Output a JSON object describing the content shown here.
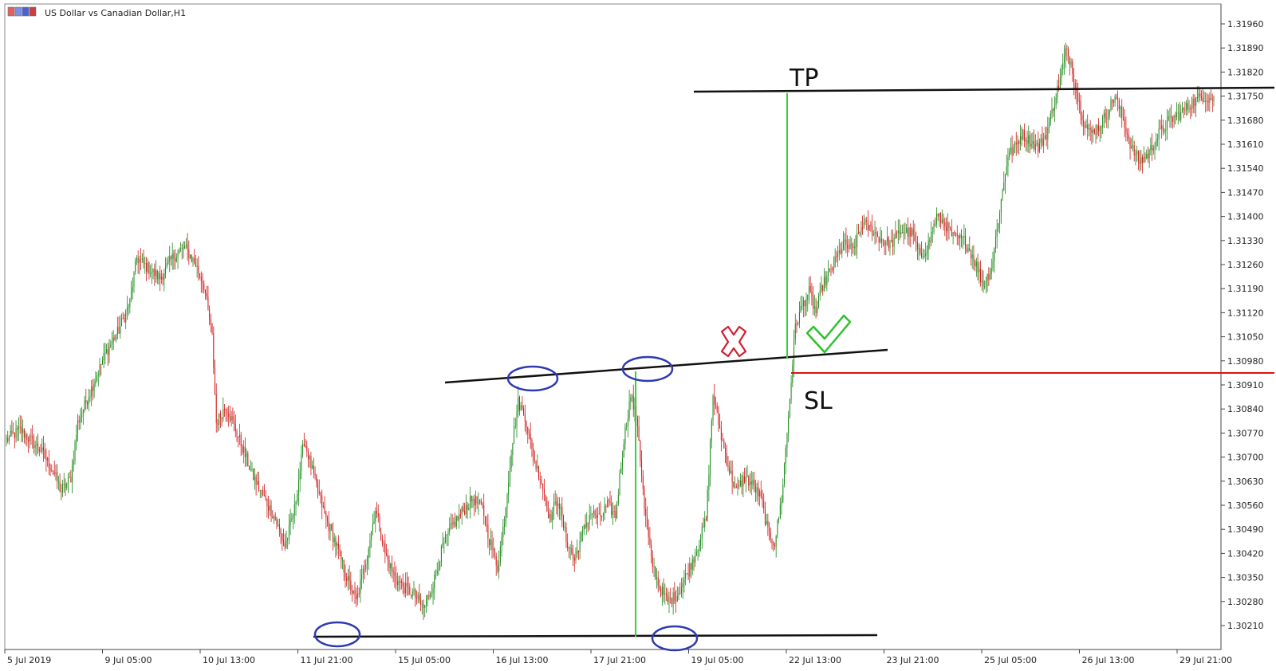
{
  "window": {
    "title": "US Dollar vs Canadian Dollar,H1"
  },
  "chart_data": {
    "type": "candlestick",
    "title": "US Dollar vs Canadian Dollar,H1",
    "symbol": "USDCAD",
    "timeframe": "H1",
    "ylim": [
      1.3017,
      1.3202
    ],
    "y_ticks": [
      "1.31960",
      "1.31890",
      "1.31820",
      "1.31750",
      "1.31680",
      "1.31610",
      "1.31540",
      "1.31470",
      "1.31400",
      "1.31330",
      "1.31260",
      "1.31190",
      "1.31120",
      "1.31050",
      "1.30980",
      "1.30910",
      "1.30840",
      "1.30770",
      "1.30700",
      "1.30630",
      "1.30560",
      "1.30490",
      "1.30420",
      "1.30350",
      "1.30280",
      "1.30210"
    ],
    "x_ticks": [
      "5 Jul 2019",
      "9 Jul 05:00",
      "10 Jul 13:00",
      "11 Jul 21:00",
      "15 Jul 05:00",
      "16 Jul 13:00",
      "17 Jul 21:00",
      "19 Jul 05:00",
      "22 Jul 13:00",
      "23 Jul 21:00",
      "25 Jul 05:00",
      "26 Jul 13:00",
      "29 Jul 21:00"
    ],
    "bull_color": "#1a8a1a",
    "bear_color": "#d01818",
    "price_path": [
      [
        0,
        1.3075
      ],
      [
        10,
        1.3078
      ],
      [
        25,
        1.3072
      ],
      [
        34,
        1.3066
      ],
      [
        40,
        1.306
      ],
      [
        47,
        1.3064
      ],
      [
        52,
        1.308
      ],
      [
        62,
        1.309
      ],
      [
        72,
        1.31
      ],
      [
        82,
        1.3107
      ],
      [
        90,
        1.3115
      ],
      [
        95,
        1.3128
      ],
      [
        103,
        1.3125
      ],
      [
        112,
        1.3122
      ],
      [
        121,
        1.3128
      ],
      [
        130,
        1.3131
      ],
      [
        138,
        1.3126
      ],
      [
        144,
        1.312
      ],
      [
        150,
        1.3105
      ],
      [
        153,
        1.308
      ],
      [
        160,
        1.3085
      ],
      [
        170,
        1.3075
      ],
      [
        179,
        1.3065
      ],
      [
        188,
        1.3058
      ],
      [
        196,
        1.3052
      ],
      [
        203,
        1.3044
      ],
      [
        210,
        1.3055
      ],
      [
        217,
        1.3075
      ],
      [
        225,
        1.3063
      ],
      [
        233,
        1.3052
      ],
      [
        240,
        1.3045
      ],
      [
        248,
        1.3035
      ],
      [
        255,
        1.3028
      ],
      [
        262,
        1.304
      ],
      [
        269,
        1.3055
      ],
      [
        276,
        1.3042
      ],
      [
        283,
        1.3035
      ],
      [
        290,
        1.3032
      ],
      [
        297,
        1.303
      ],
      [
        304,
        1.3026
      ],
      [
        311,
        1.3033
      ],
      [
        318,
        1.3044
      ],
      [
        325,
        1.305
      ],
      [
        332,
        1.3054
      ],
      [
        340,
        1.3058
      ],
      [
        347,
        1.3055
      ],
      [
        352,
        1.3046
      ],
      [
        358,
        1.3038
      ],
      [
        363,
        1.3052
      ],
      [
        368,
        1.3072
      ],
      [
        373,
        1.3086
      ],
      [
        378,
        1.3082
      ],
      [
        384,
        1.307
      ],
      [
        390,
        1.3063
      ],
      [
        396,
        1.3052
      ],
      [
        402,
        1.3058
      ],
      [
        408,
        1.3046
      ],
      [
        414,
        1.304
      ],
      [
        420,
        1.3048
      ],
      [
        426,
        1.3054
      ],
      [
        432,
        1.3052
      ],
      [
        438,
        1.3056
      ],
      [
        444,
        1.3053
      ],
      [
        450,
        1.3075
      ],
      [
        455,
        1.3088
      ],
      [
        460,
        1.308
      ],
      [
        465,
        1.3055
      ],
      [
        470,
        1.304
      ],
      [
        476,
        1.3032
      ],
      [
        482,
        1.3028
      ],
      [
        489,
        1.303
      ],
      [
        496,
        1.3036
      ],
      [
        503,
        1.3043
      ],
      [
        510,
        1.3052
      ],
      [
        515,
        1.3088
      ],
      [
        521,
        1.3076
      ],
      [
        527,
        1.3066
      ],
      [
        532,
        1.306
      ],
      [
        538,
        1.3064
      ],
      [
        544,
        1.3062
      ],
      [
        550,
        1.3058
      ],
      [
        555,
        1.3048
      ],
      [
        560,
        1.3045
      ],
      [
        565,
        1.3058
      ],
      [
        570,
        1.3082
      ],
      [
        575,
        1.3108
      ],
      [
        580,
        1.3114
      ],
      [
        585,
        1.3118
      ],
      [
        590,
        1.3112
      ],
      [
        595,
        1.312
      ],
      [
        602,
        1.3125
      ],
      [
        610,
        1.3132
      ],
      [
        617,
        1.313
      ],
      [
        624,
        1.3138
      ],
      [
        631,
        1.3136
      ],
      [
        638,
        1.3133
      ],
      [
        645,
        1.3132
      ],
      [
        652,
        1.3136
      ],
      [
        660,
        1.3135
      ],
      [
        666,
        1.3128
      ],
      [
        672,
        1.3132
      ],
      [
        678,
        1.314
      ],
      [
        684,
        1.3138
      ],
      [
        690,
        1.3134
      ],
      [
        698,
        1.3133
      ],
      [
        705,
        1.3128
      ],
      [
        712,
        1.312
      ],
      [
        718,
        1.3125
      ],
      [
        724,
        1.3142
      ],
      [
        730,
        1.3158
      ],
      [
        735,
        1.316
      ],
      [
        740,
        1.3164
      ],
      [
        746,
        1.3162
      ],
      [
        752,
        1.316
      ],
      [
        758,
        1.3164
      ],
      [
        763,
        1.3172
      ],
      [
        768,
        1.318
      ],
      [
        772,
        1.3188
      ],
      [
        776,
        1.3185
      ],
      [
        780,
        1.3176
      ],
      [
        785,
        1.3168
      ],
      [
        790,
        1.3164
      ],
      [
        796,
        1.3166
      ],
      [
        802,
        1.317
      ],
      [
        808,
        1.3175
      ],
      [
        814,
        1.3168
      ],
      [
        820,
        1.316
      ],
      [
        826,
        1.3156
      ],
      [
        832,
        1.3158
      ],
      [
        840,
        1.3164
      ],
      [
        848,
        1.3168
      ],
      [
        856,
        1.317
      ],
      [
        864,
        1.3173
      ],
      [
        872,
        1.3175
      ],
      [
        880,
        1.3174
      ]
    ],
    "annotations": {
      "tp_label": "TP",
      "sl_label": "SL"
    }
  }
}
